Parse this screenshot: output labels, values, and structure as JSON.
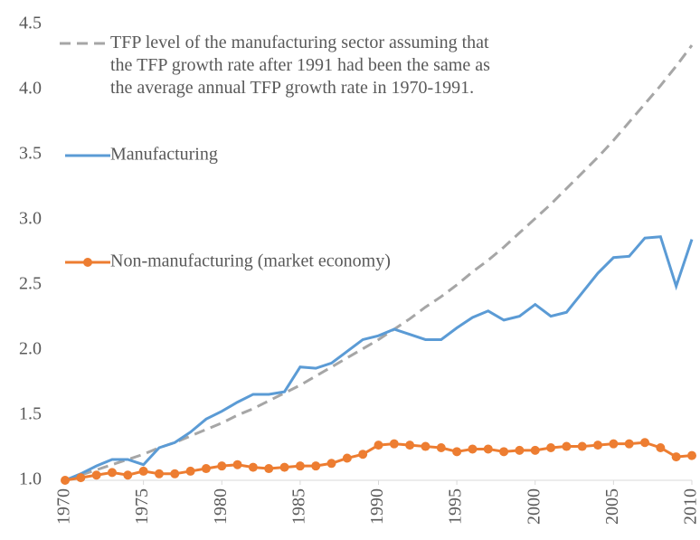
{
  "chart_data": {
    "type": "line",
    "x": [
      1970,
      1971,
      1972,
      1973,
      1974,
      1975,
      1976,
      1977,
      1978,
      1979,
      1980,
      1981,
      1982,
      1983,
      1984,
      1985,
      1986,
      1987,
      1988,
      1989,
      1990,
      1991,
      1992,
      1993,
      1994,
      1995,
      1996,
      1997,
      1998,
      1999,
      2000,
      2001,
      2002,
      2003,
      2004,
      2005,
      2006,
      2007,
      2008,
      2009,
      2010
    ],
    "series": [
      {
        "name": "TFP level of the manufacturing sector assuming that the TFP growth rate after 1991 had been the same as the average annual TFP growth rate in 1970-1991.",
        "color": "#a6a6a6",
        "dashed": true,
        "values": [
          1.0,
          1.04,
          1.08,
          1.12,
          1.16,
          1.2,
          1.25,
          1.29,
          1.34,
          1.39,
          1.44,
          1.5,
          1.55,
          1.61,
          1.67,
          1.73,
          1.8,
          1.87,
          1.94,
          2.01,
          2.08,
          2.16,
          2.24,
          2.33,
          2.41,
          2.5,
          2.6,
          2.69,
          2.79,
          2.9,
          3.01,
          3.12,
          3.24,
          3.36,
          3.48,
          3.61,
          3.75,
          3.89,
          4.03,
          4.18,
          4.34
        ]
      },
      {
        "name": "Manufacturing",
        "color": "#5b9bd5",
        "values": [
          1.0,
          1.05,
          1.11,
          1.16,
          1.16,
          1.12,
          1.25,
          1.29,
          1.37,
          1.47,
          1.53,
          1.6,
          1.66,
          1.66,
          1.68,
          1.87,
          1.86,
          1.9,
          1.99,
          2.08,
          2.11,
          2.16,
          2.12,
          2.08,
          2.08,
          2.17,
          2.25,
          2.3,
          2.23,
          2.26,
          2.35,
          2.26,
          2.29,
          2.44,
          2.59,
          2.71,
          2.72,
          2.86,
          2.87,
          2.49,
          2.85
        ]
      },
      {
        "name": "Non-manufacturing (market economy)",
        "color": "#ed7d31",
        "markers": true,
        "values": [
          1.0,
          1.02,
          1.04,
          1.06,
          1.04,
          1.07,
          1.05,
          1.05,
          1.07,
          1.09,
          1.11,
          1.12,
          1.1,
          1.09,
          1.1,
          1.11,
          1.11,
          1.13,
          1.17,
          1.2,
          1.27,
          1.28,
          1.27,
          1.26,
          1.25,
          1.22,
          1.24,
          1.24,
          1.22,
          1.23,
          1.23,
          1.25,
          1.26,
          1.26,
          1.27,
          1.28,
          1.28,
          1.29,
          1.25,
          1.18,
          1.19
        ]
      }
    ],
    "xlim": [
      1970,
      2010
    ],
    "xticks": [
      1970,
      1975,
      1980,
      1985,
      1990,
      1995,
      2000,
      2005,
      2010
    ],
    "ylim": [
      1,
      4.5
    ],
    "yticks": [
      {
        "value": 1,
        "label": "1.0"
      },
      1.5,
      {
        "value": 2,
        "label": "2.0"
      },
      2.5,
      {
        "value": 3,
        "label": "3.0"
      },
      3.5,
      {
        "value": 4,
        "label": "4.0"
      },
      4.5
    ],
    "grid": false
  }
}
